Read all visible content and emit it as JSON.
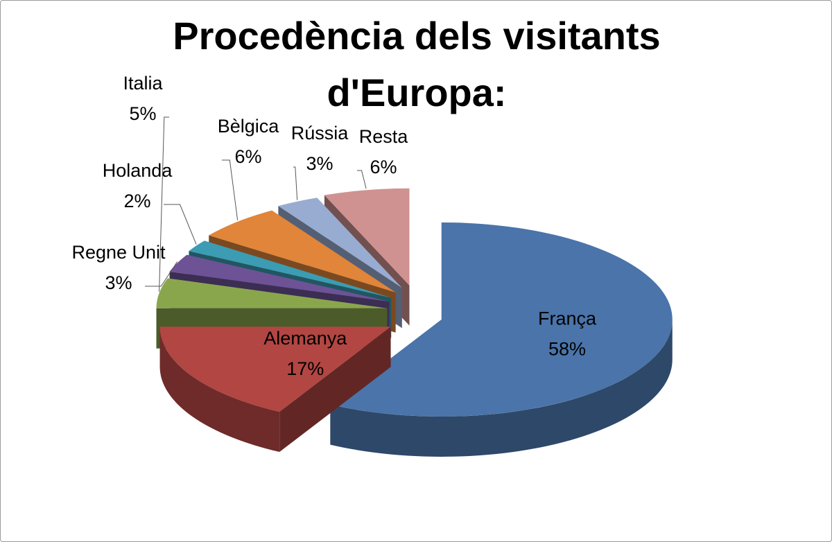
{
  "chart_data": {
    "type": "pie",
    "title": "Procedència dels visitants d'Europa:",
    "categories": [
      "França",
      "Alemanya",
      "Italia",
      "Regne Unit",
      "Holanda",
      "Bèlgica",
      "Rússia",
      "Resta"
    ],
    "values": [
      58,
      17,
      5,
      3,
      2,
      6,
      3,
      6
    ],
    "value_labels": [
      "58%",
      "17%",
      "5%",
      "3%",
      "2%",
      "6%",
      "3%",
      "6%"
    ],
    "colors": [
      "#4a74aa",
      "#b24642",
      "#8aa64c",
      "#6d5296",
      "#3b9cb3",
      "#e0853a",
      "#98acd2",
      "#d09291"
    ]
  }
}
